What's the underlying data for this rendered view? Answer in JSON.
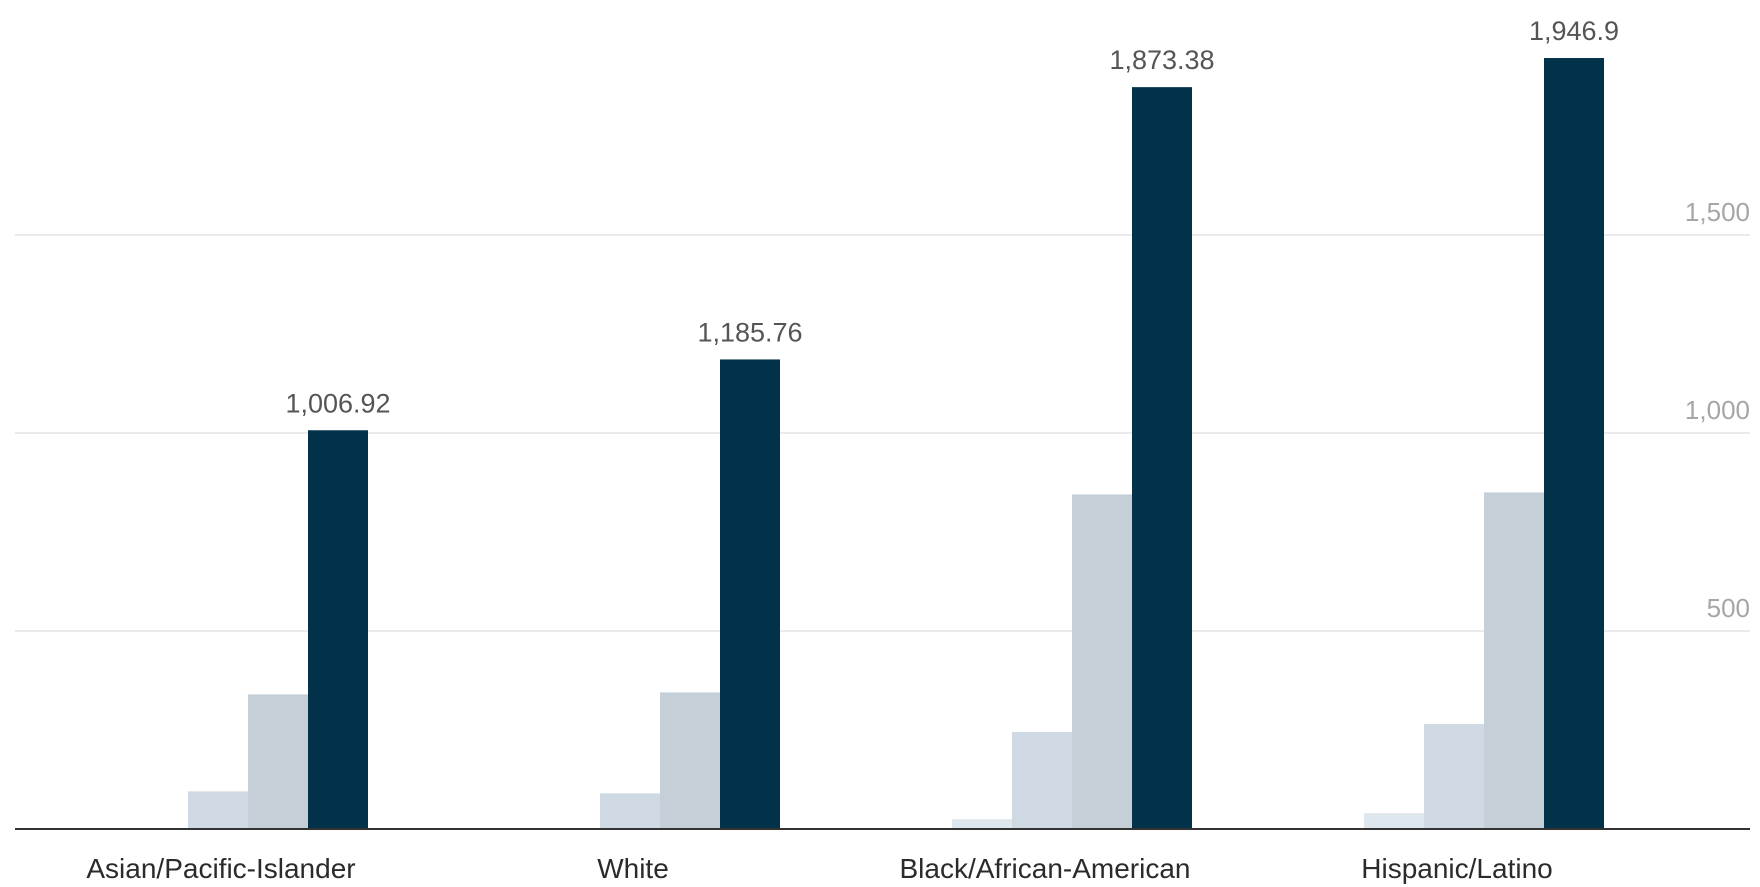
{
  "chart_data": {
    "type": "bar",
    "categories": [
      "Asian/Pacific-Islander",
      "White",
      "Black/African-American",
      "Hispanic/Latino"
    ],
    "series": [
      {
        "values": [
          2,
          2,
          25,
          40
        ],
        "color": "#dfe7ee"
      },
      {
        "values": [
          95,
          90,
          245,
          265
        ],
        "color": "#ced9e3"
      },
      {
        "values": [
          340,
          345,
          845,
          850
        ],
        "color": "#c4cfd8"
      },
      {
        "values": [
          1006.92,
          1185.76,
          1873.38,
          1946.9
        ],
        "color": "#02314a"
      }
    ],
    "data_labels": [
      "1,006.92",
      "1,185.76",
      "1,873.38",
      "1,946.9"
    ],
    "y_axis": {
      "ticks": [
        500,
        1000,
        1500
      ],
      "tick_labels": [
        "500",
        "1,000",
        "1,500"
      ],
      "position": "right",
      "ylim": [
        0,
        2000
      ]
    },
    "grid": true,
    "legend": "none"
  }
}
